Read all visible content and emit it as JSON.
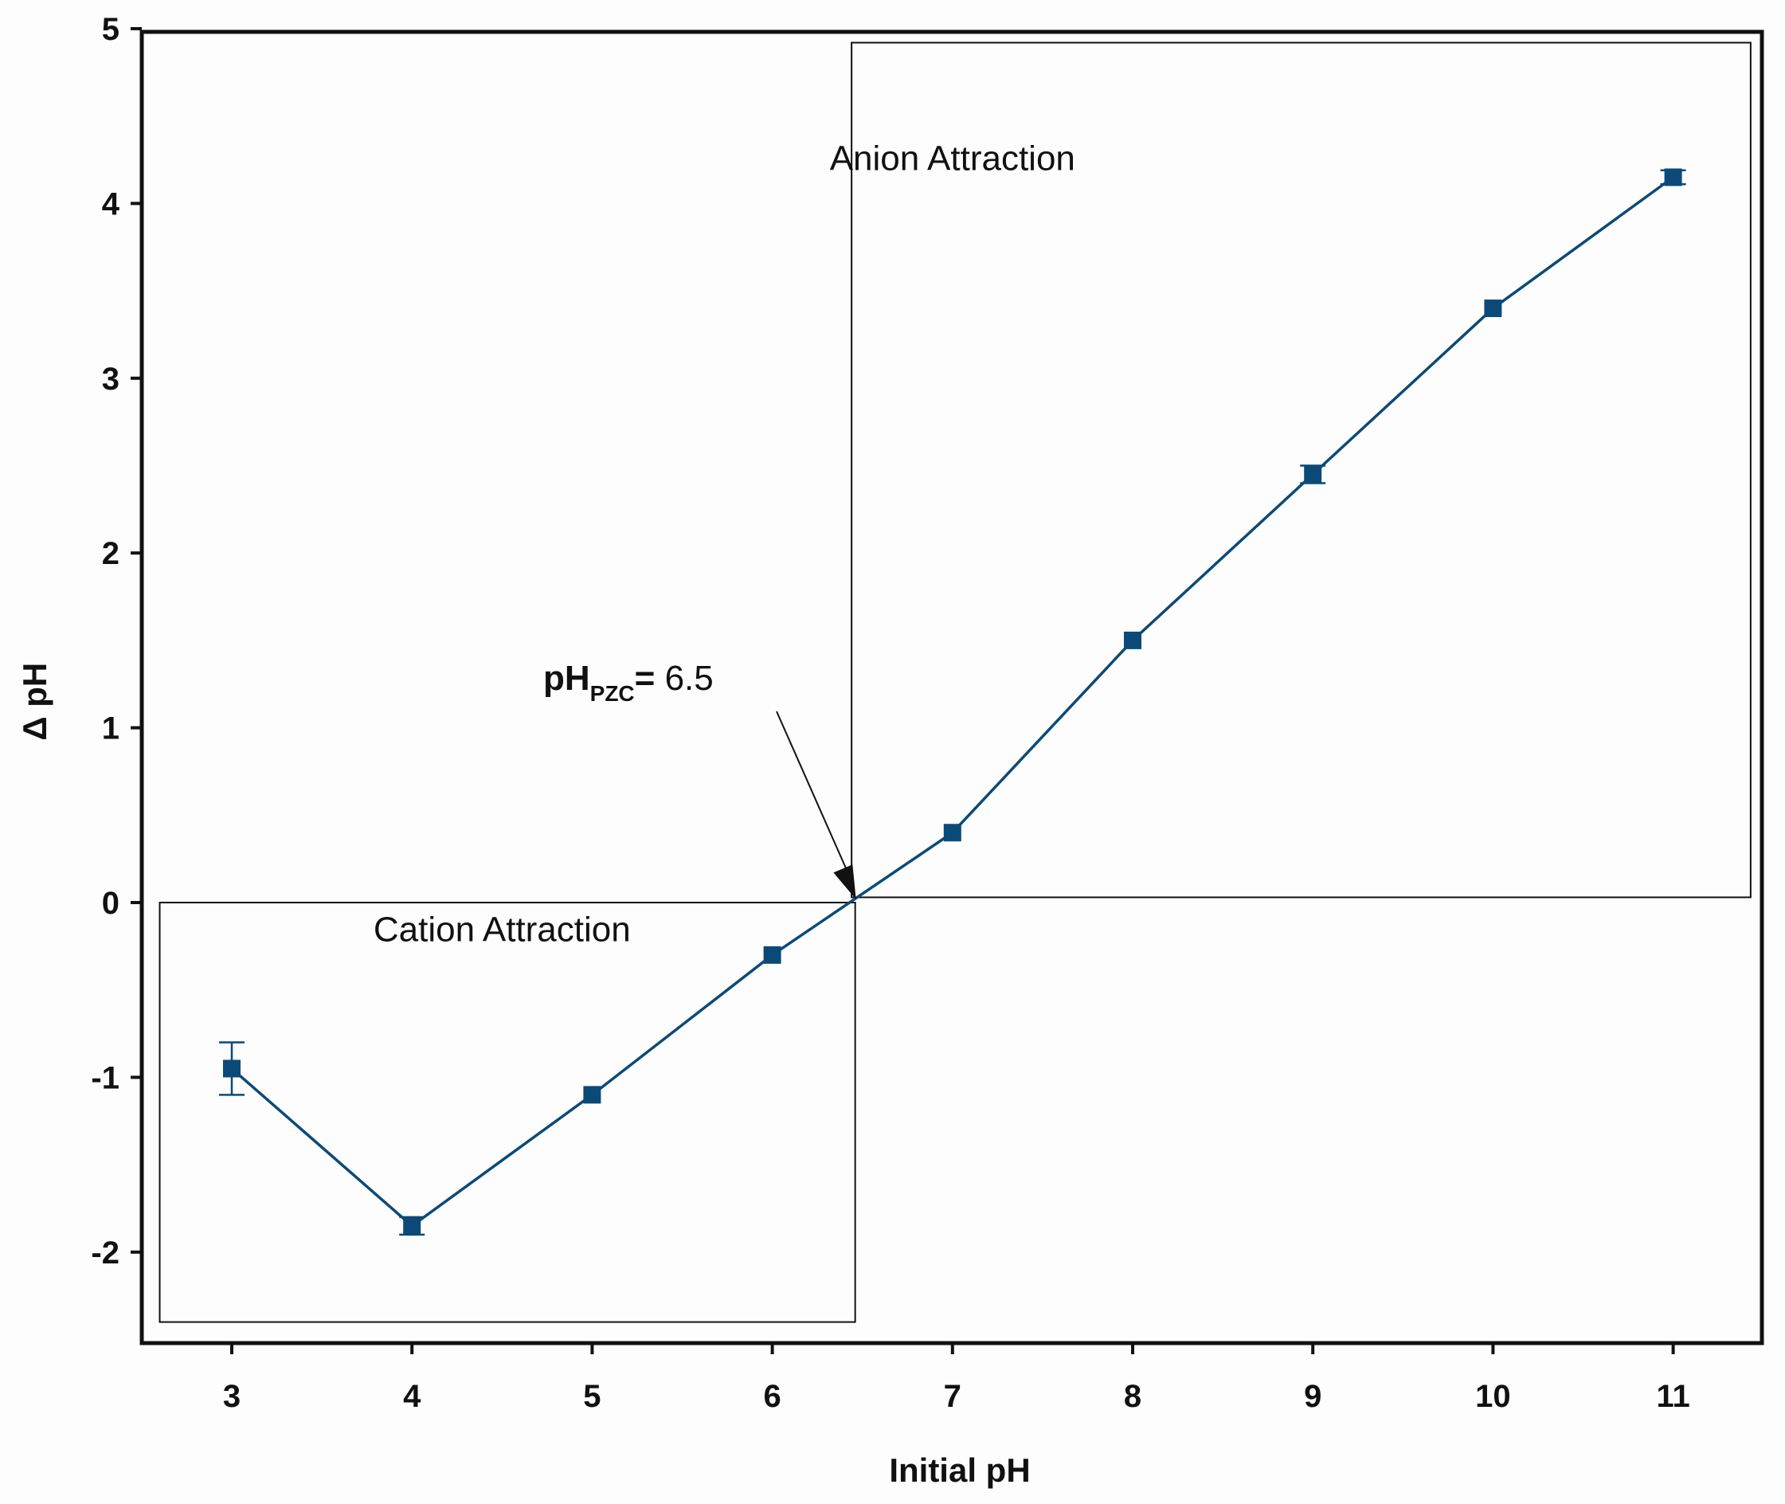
{
  "chart_data": {
    "type": "line",
    "title": "",
    "xlabel": "Initial pH",
    "ylabel": "Δ pH",
    "xlim": [
      2.5,
      11.5
    ],
    "ylim": [
      -2.5,
      5
    ],
    "x_ticks": [
      3,
      4,
      5,
      6,
      7,
      8,
      9,
      10,
      11
    ],
    "y_ticks": [
      -2,
      -1,
      0,
      1,
      2,
      3,
      4,
      5
    ],
    "grid": false,
    "legend": "none",
    "series": [
      {
        "marker": "square",
        "color": "#0b4a78",
        "x": [
          3,
          4,
          5,
          6,
          7,
          8,
          9,
          10,
          11
        ],
        "y": [
          -0.95,
          -1.85,
          -1.1,
          -0.3,
          0.4,
          1.5,
          2.45,
          3.4,
          4.15
        ],
        "error": [
          0.15,
          0.05,
          0.0,
          0.0,
          0.0,
          0.0,
          0.05,
          0.0,
          0.04
        ]
      }
    ],
    "regions": [
      {
        "label": "Cation Attraction",
        "x_range": [
          2.6,
          6.46
        ],
        "y_range": [
          -2.4,
          0.0
        ]
      },
      {
        "label": "Anion Attraction",
        "x_range": [
          6.44,
          11.43
        ],
        "y_range": [
          0.03,
          4.92
        ]
      }
    ],
    "annotation": {
      "main": "pH",
      "subscript": "PZC",
      "value_text": "= 6.5",
      "point": [
        6.5,
        0.0
      ]
    }
  }
}
